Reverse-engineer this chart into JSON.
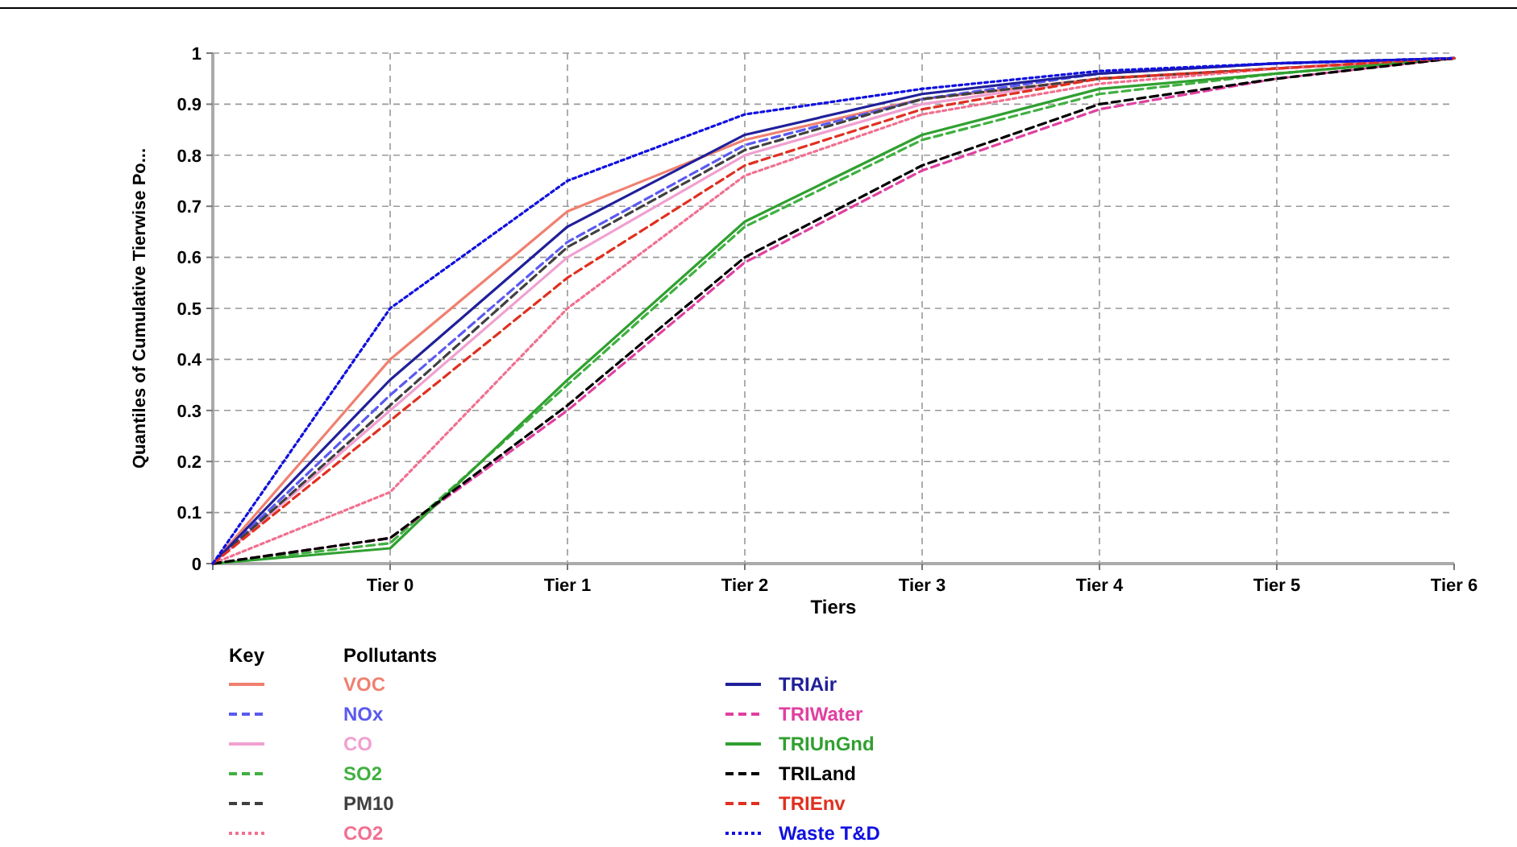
{
  "chart_data": {
    "type": "line",
    "xlabel": "Tiers",
    "ylabel": "Quantiles of Cumulative Tierwise Po...",
    "legend_title": "Pollutants",
    "annotations": [
      "Key"
    ],
    "categories": [
      null,
      "Tier 0",
      "Tier 1",
      "Tier 2",
      "Tier 3",
      "Tier 4",
      "Tier 5",
      "Tier 6"
    ],
    "ylim": [
      0,
      1
    ],
    "yticks": [
      0,
      0.1,
      0.2,
      0.3,
      0.4,
      0.5,
      0.6,
      0.7,
      0.8,
      0.9,
      1
    ],
    "grid": true,
    "legend": "bottom",
    "marker": "none",
    "series": [
      {
        "name": "VOC",
        "color": "#f08070",
        "line_style": "solid",
        "values": [
          0,
          0.4,
          0.69,
          0.83,
          0.91,
          0.95,
          0.97,
          0.99
        ]
      },
      {
        "name": "NOx",
        "color": "#5a5af0",
        "line_style": "dashed",
        "values": [
          0,
          0.33,
          0.63,
          0.82,
          0.91,
          0.96,
          0.98,
          0.99
        ]
      },
      {
        "name": "CO",
        "color": "#f0a0d0",
        "line_style": "solid",
        "values": [
          0,
          0.3,
          0.6,
          0.8,
          0.9,
          0.95,
          0.97,
          0.99
        ]
      },
      {
        "name": "SO2",
        "color": "#40b040",
        "line_style": "dashed",
        "values": [
          0,
          0.04,
          0.35,
          0.66,
          0.83,
          0.92,
          0.96,
          0.99
        ]
      },
      {
        "name": "PM10",
        "color": "#404040",
        "line_style": "dashed",
        "values": [
          0,
          0.31,
          0.62,
          0.81,
          0.91,
          0.95,
          0.97,
          0.99
        ]
      },
      {
        "name": "CO2",
        "color": "#f07090",
        "line_style": "dotted",
        "values": [
          0,
          0.14,
          0.5,
          0.76,
          0.88,
          0.94,
          0.97,
          0.99
        ]
      },
      {
        "name": "TRIAir",
        "color": "#20209a",
        "line_style": "solid",
        "values": [
          0,
          0.36,
          0.66,
          0.84,
          0.92,
          0.96,
          0.98,
          0.99
        ]
      },
      {
        "name": "TRIWater",
        "color": "#e040a0",
        "line_style": "dashed",
        "values": [
          0,
          0.05,
          0.3,
          0.59,
          0.77,
          0.89,
          0.95,
          0.99
        ]
      },
      {
        "name": "TRIUnGnd",
        "color": "#30a030",
        "line_style": "solid",
        "values": [
          0,
          0.03,
          0.36,
          0.67,
          0.84,
          0.93,
          0.96,
          0.99
        ]
      },
      {
        "name": "TRILand",
        "color": "#000000",
        "line_style": "dashed",
        "values": [
          0,
          0.05,
          0.31,
          0.6,
          0.78,
          0.9,
          0.95,
          0.99
        ]
      },
      {
        "name": "TRIEnv",
        "color": "#e03020",
        "line_style": "dashed",
        "values": [
          0,
          0.28,
          0.56,
          0.78,
          0.89,
          0.95,
          0.97,
          0.99
        ]
      },
      {
        "name": "Waste T&D",
        "color": "#1010e0",
        "line_style": "dotted",
        "values": [
          0,
          0.5,
          0.75,
          0.88,
          0.93,
          0.965,
          0.98,
          0.99
        ]
      }
    ]
  }
}
